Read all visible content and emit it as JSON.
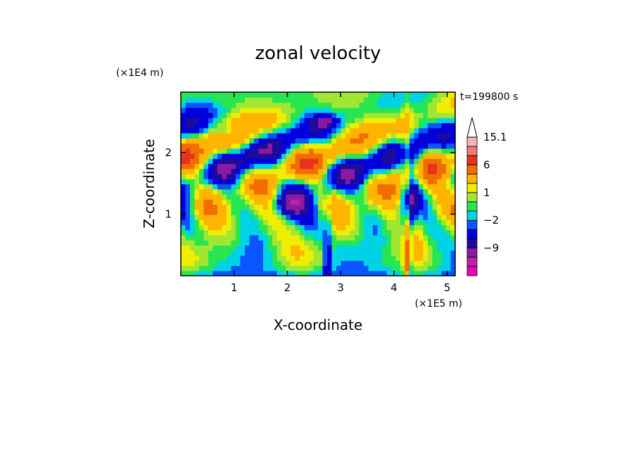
{
  "chart_data": {
    "type": "heatmap",
    "title": "zonal velocity",
    "xlabel": "X-coordinate",
    "ylabel": "Z-coordinate",
    "x_units": "(×1E5 m)",
    "y_units": "(×1E4 m)",
    "xlim": [
      0,
      5.15
    ],
    "ylim": [
      0,
      2.98
    ],
    "x_ticks": [
      1,
      2,
      3,
      4,
      5
    ],
    "y_ticks": [
      1,
      2
    ],
    "x_tick_labels": [
      "1",
      "2",
      "3",
      "4",
      "5"
    ],
    "y_tick_labels": [
      "1",
      "2"
    ],
    "time_label": "t=199800 s",
    "colorbar": {
      "levels": [
        -15,
        -12,
        -9,
        -6,
        -4,
        -2,
        -1,
        0,
        1,
        2,
        3,
        6,
        9,
        12,
        15.1
      ],
      "colors": [
        "#ee00b4",
        "#c41ea8",
        "#8c1aa0",
        "#1e0a9c",
        "#0000dc",
        "#0a55ff",
        "#00d2e6",
        "#28e650",
        "#a0e632",
        "#f0ee00",
        "#ffb400",
        "#f06e00",
        "#e6321e",
        "#f07878",
        "#f5b4b4"
      ],
      "extend": "max",
      "labels": [
        {
          "text": "15.1",
          "value": 15.1
        },
        {
          "text": "6",
          "value": 6
        },
        {
          "text": "1",
          "value": 1
        },
        {
          "text": "−2",
          "value": -2
        },
        {
          "text": "−9",
          "value": -9
        }
      ]
    },
    "grid": false
  }
}
